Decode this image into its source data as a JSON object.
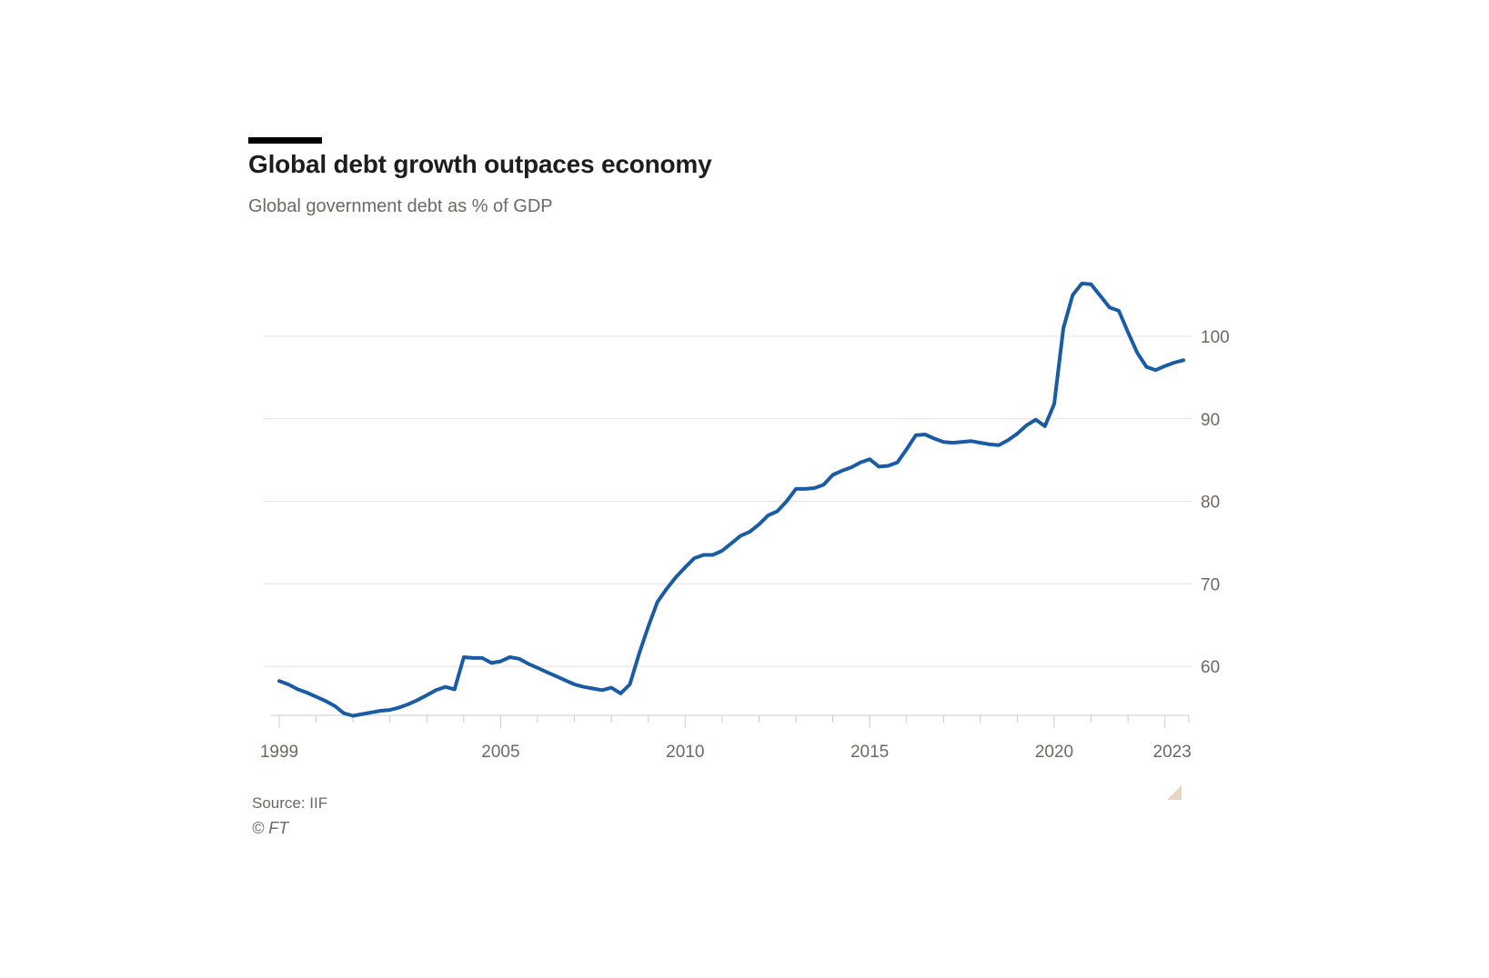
{
  "header": {
    "title": "Global debt growth outpaces economy",
    "subtitle": "Global government debt as % of GDP"
  },
  "footer": {
    "source": "Source: IIF",
    "copyright": "© FT"
  },
  "theme": {
    "line_color": "#1a5ba6",
    "grid_color": "#ebe2da",
    "axis_color": "#cccccc",
    "label_color": "#6e6862",
    "title_color": "#1d1d1b",
    "kicker_color": "#000000",
    "resize_handle_color": "#e9d5c5",
    "background_color": "#ffffff"
  },
  "chart_data": {
    "type": "line",
    "title": "Global debt growth outpaces economy",
    "subtitle": "Global government debt as % of GDP",
    "series": [
      {
        "name": "Global government debt as % of GDP",
        "x": [
          1999,
          1999.25,
          1999.5,
          1999.75,
          2000,
          2000.25,
          2000.5,
          2000.75,
          2001,
          2001.25,
          2001.5,
          2001.75,
          2002,
          2002.25,
          2002.5,
          2002.75,
          2003,
          2003.25,
          2003.5,
          2003.75,
          2004,
          2004.25,
          2004.5,
          2004.75,
          2005,
          2005.25,
          2005.5,
          2005.75,
          2006,
          2006.25,
          2006.5,
          2006.75,
          2007,
          2007.25,
          2007.5,
          2007.75,
          2008,
          2008.25,
          2008.5,
          2008.75,
          2009,
          2009.25,
          2009.5,
          2009.75,
          2010,
          2010.25,
          2010.5,
          2010.75,
          2011,
          2011.25,
          2011.5,
          2011.75,
          2012,
          2012.25,
          2012.5,
          2012.75,
          2013,
          2013.25,
          2013.5,
          2013.75,
          2014,
          2014.25,
          2014.5,
          2014.75,
          2015,
          2015.25,
          2015.5,
          2015.75,
          2016,
          2016.25,
          2016.5,
          2016.75,
          2017,
          2017.25,
          2017.5,
          2017.75,
          2018,
          2018.25,
          2018.5,
          2018.75,
          2019,
          2019.25,
          2019.5,
          2019.75,
          2020,
          2020.25,
          2020.5,
          2020.75,
          2021,
          2021.25,
          2021.5,
          2021.75,
          2022,
          2022.25,
          2022.5,
          2022.75,
          2023,
          2023.25,
          2023.5
        ],
        "values": [
          58.2,
          57.8,
          57.2,
          56.8,
          56.3,
          55.8,
          55.2,
          54.3,
          54.0,
          54.2,
          54.4,
          54.6,
          54.7,
          55.0,
          55.4,
          55.9,
          56.5,
          57.1,
          57.5,
          57.2,
          61.1,
          61.0,
          61.0,
          60.4,
          60.6,
          61.1,
          60.9,
          60.3,
          59.8,
          59.3,
          58.8,
          58.3,
          57.8,
          57.5,
          57.3,
          57.1,
          57.4,
          56.7,
          57.8,
          61.5,
          64.8,
          67.8,
          69.4,
          70.8,
          72.0,
          73.1,
          73.5,
          73.5,
          74.0,
          74.9,
          75.8,
          76.3,
          77.2,
          78.3,
          78.8,
          80.0,
          81.5,
          81.5,
          81.6,
          82.0,
          83.2,
          83.7,
          84.1,
          84.7,
          85.1,
          84.2,
          84.3,
          84.7,
          86.3,
          88.0,
          88.1,
          87.6,
          87.2,
          87.1,
          87.2,
          87.3,
          87.1,
          86.9,
          86.8,
          87.4,
          88.2,
          89.2,
          89.9,
          89.1,
          91.8,
          101.0,
          105.0,
          106.4,
          106.3,
          104.9,
          103.5,
          103.1,
          100.5,
          98.0,
          96.3,
          95.9,
          96.4,
          96.8,
          97.1
        ]
      }
    ],
    "x_axis": {
      "first_tick": 1999,
      "last_tick": 2023,
      "tick_interval": 1,
      "labels": [
        "1999",
        "2005",
        "2010",
        "2015",
        "2020",
        "2023"
      ],
      "label_years": [
        1999,
        2005,
        2010,
        2015,
        2020,
        2023
      ],
      "range": [
        1998.8,
        2023.65
      ]
    },
    "y_axis": {
      "ticks": [
        60,
        70,
        80,
        90,
        100
      ],
      "tick_labels": [
        "60",
        "70",
        "80",
        "90",
        "100"
      ],
      "range": [
        54,
        107.5
      ],
      "grid": true,
      "label_side": "right"
    },
    "legend": "none"
  }
}
